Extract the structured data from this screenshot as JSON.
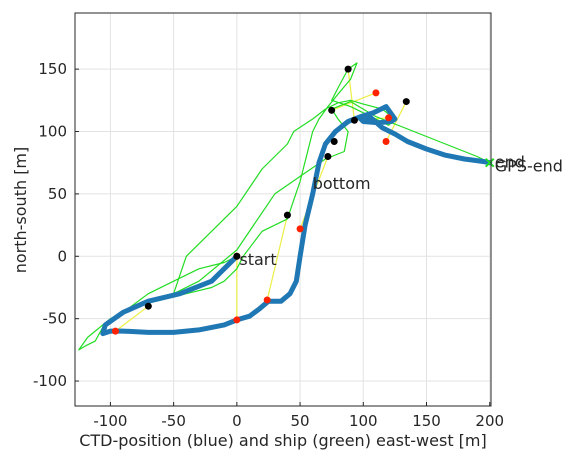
{
  "chart_data": {
    "type": "line",
    "title": "",
    "xlabel": "CTD-position (blue) and ship (green) east-west [m]",
    "ylabel": "north-south [m]",
    "xlim": [
      -128,
      201
    ],
    "ylim": [
      -120,
      195
    ],
    "xticks": [
      -100,
      -50,
      0,
      50,
      100,
      150,
      200
    ],
    "yticks": [
      -100,
      -50,
      0,
      50,
      100,
      150
    ],
    "xtick_labels": [
      "-100",
      "-50",
      "0",
      "50",
      "100",
      "150",
      "200"
    ],
    "ytick_labels": [
      "-100",
      "-50",
      "0",
      "50",
      "100",
      "150"
    ],
    "grid": true,
    "colors": {
      "ctd": "#1f77b4",
      "ship": "#22dd22",
      "links": "#eeee44",
      "ctd_markers": "#ff2200",
      "ship_markers": "#000000"
    },
    "series": [
      {
        "key": "ctd",
        "x": [
          0,
          -20,
          -45,
          -70,
          -90,
          -104,
          -106,
          -100,
          -90,
          -70,
          -50,
          -30,
          -10,
          0,
          10,
          18,
          25,
          35,
          42,
          47,
          50,
          54,
          60,
          65,
          70,
          78,
          88,
          98,
          108,
          118,
          125,
          122,
          112,
          100,
          98,
          105,
          115,
          125,
          135,
          150,
          165,
          180,
          195,
          200
        ],
        "y": [
          0,
          -20,
          -30,
          -36,
          -45,
          -55,
          -62,
          -60,
          -60,
          -61,
          -61,
          -59,
          -55,
          -51,
          -48,
          -42,
          -36,
          -36,
          -30,
          -20,
          0,
          25,
          50,
          75,
          90,
          100,
          108,
          112,
          115,
          120,
          110,
          108,
          107,
          108,
          110,
          112,
          103,
          98,
          92,
          86,
          81,
          78,
          76,
          75
        ]
      },
      {
        "key": "ship",
        "x": [
          0,
          -10,
          -30,
          -50,
          -70,
          -90,
          -105,
          -112,
          -120,
          -125,
          -118,
          -100,
          -80,
          -60,
          -40,
          -20,
          -10,
          0,
          5,
          20,
          40,
          45,
          50,
          55,
          60,
          65,
          72,
          80,
          90,
          95,
          88,
          80,
          75,
          90,
          100,
          110,
          120,
          125,
          115,
          100,
          90,
          80,
          70,
          60,
          45,
          40,
          20,
          0,
          -20,
          -40,
          -50,
          -30,
          0,
          30,
          50,
          70,
          85,
          88,
          80,
          75,
          90,
          110,
          130,
          150,
          170,
          190,
          200
        ],
        "y": [
          0,
          -5,
          -10,
          -20,
          -30,
          -45,
          -55,
          -68,
          -72,
          -75,
          -65,
          -50,
          -40,
          -35,
          -30,
          -25,
          -20,
          -10,
          0,
          20,
          30,
          45,
          60,
          80,
          100,
          110,
          120,
          130,
          142,
          155,
          150,
          135,
          125,
          120,
          115,
          110,
          105,
          110,
          118,
          122,
          125,
          123,
          118,
          110,
          100,
          90,
          70,
          40,
          20,
          0,
          -30,
          -20,
          5,
          50,
          64,
          78,
          84,
          100,
          110,
          118,
          124,
          112,
          104,
          96,
          88,
          80,
          75
        ]
      }
    ],
    "ctd_markers": {
      "x": [
        0,
        -96,
        0,
        24,
        50,
        110,
        120,
        118
      ],
      "y": [
        0,
        -60,
        -51,
        -35,
        22,
        131,
        111,
        92
      ]
    },
    "ship_markers": {
      "x": [
        0,
        -70,
        40,
        72,
        77,
        75,
        88,
        93,
        134
      ],
      "y": [
        0,
        -40,
        33,
        80,
        92,
        117,
        150,
        109,
        124
      ]
    },
    "links": [
      [
        [
          0,
          0
        ],
        [
          0,
          -51
        ]
      ],
      [
        [
          -70,
          -40
        ],
        [
          -96,
          -60
        ]
      ],
      [
        [
          40,
          33
        ],
        [
          24,
          -35
        ]
      ],
      [
        [
          72,
          80
        ],
        [
          50,
          22
        ]
      ],
      [
        [
          75,
          117
        ],
        [
          110,
          131
        ]
      ],
      [
        [
          88,
          150
        ],
        [
          93,
          109
        ]
      ],
      [
        [
          93,
          109
        ],
        [
          120,
          111
        ]
      ],
      [
        [
          134,
          124
        ],
        [
          118,
          92
        ]
      ]
    ],
    "annotations": [
      {
        "text": "start",
        "x": 2,
        "y": -3
      },
      {
        "text": "bottom",
        "x": 60,
        "y": 58
      },
      {
        "text": "end",
        "x": 204,
        "y": 75
      },
      {
        "text": "GPS-end",
        "x": 204,
        "y": 72
      }
    ]
  }
}
